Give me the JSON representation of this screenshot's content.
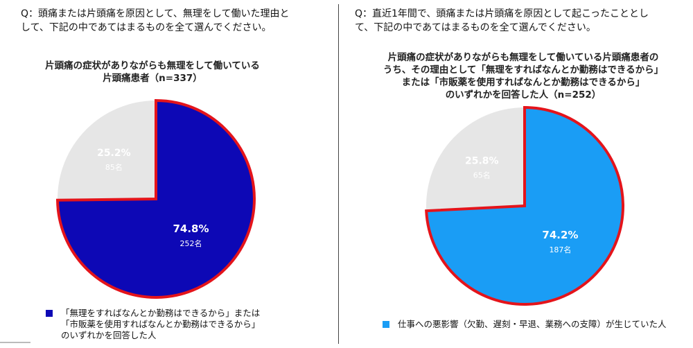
{
  "left": {
    "question": [
      "Q：頭痛または片頭痛を原因として、無理をして働いた理由と",
      "して、下記の中であてはまるものを全て選んでください。"
    ],
    "subtitle": [
      "片頭痛の症状がありながらも無理をして働いている",
      "片頭痛患者（n=337）"
    ],
    "legend": [
      "「無理をすればなんとか勤務はできるから」または",
      "「市販薬を使用すればなんとか勤務はできるから」",
      "のいずれかを回答した人"
    ]
  },
  "right": {
    "question": [
      "Q：直近1年間で、頭痛または片頭痛を原因として起こったこととし",
      "て、下記の中であてはまるものを全て選んでください。"
    ],
    "subtitle": [
      "片頭痛の症状がありながらも無理をして働いている片頭痛患者の",
      "うち、その理由として「無理をすればなんとか勤務はできるから」",
      "または「市販薬を使用すればなんとか勤務はできるから」",
      "のいずれかを回答した人（n=252）"
    ],
    "legend": [
      "仕事への悪影響（欠勤、遅刻・早退、業務への支障）が生じていた人"
    ]
  },
  "colors": {
    "left_main": "#0d08b5",
    "right_main": "#1a9df5",
    "other": "#e6e6e6",
    "outline": "#e4141b"
  },
  "chart_data": [
    {
      "type": "pie",
      "slices": [
        {
          "percent": 74.8,
          "count": 252,
          "pct_label": "74.8%",
          "count_label": "252名",
          "highlighted": true
        },
        {
          "percent": 25.2,
          "count": 85,
          "pct_label": "25.2%",
          "count_label": "85名",
          "highlighted": false
        }
      ]
    },
    {
      "type": "pie",
      "slices": [
        {
          "percent": 74.2,
          "count": 187,
          "pct_label": "74.2%",
          "count_label": "187名",
          "highlighted": true
        },
        {
          "percent": 25.8,
          "count": 65,
          "pct_label": "25.8%",
          "count_label": "65名",
          "highlighted": false
        }
      ]
    }
  ]
}
